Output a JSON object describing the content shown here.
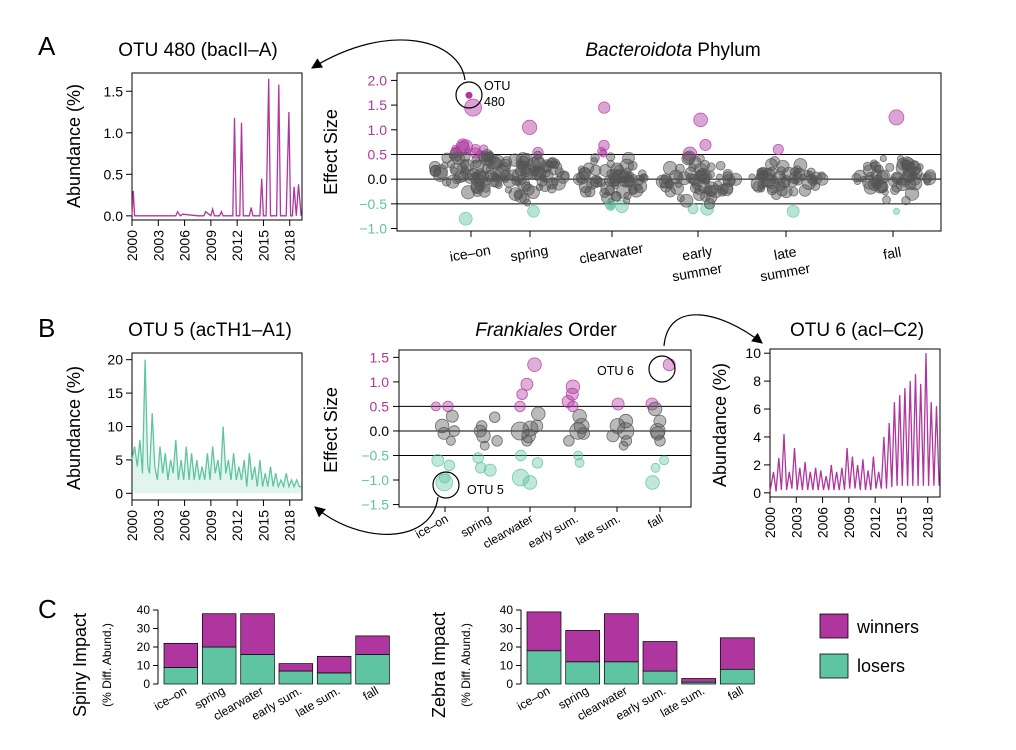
{
  "colors": {
    "winners": "#b0369f",
    "losers": "#5fc4a2",
    "neutral": "#555555"
  },
  "panel_letters": [
    "A",
    "B",
    "C"
  ],
  "chart_data": [
    {
      "id": "a_ts",
      "type": "line",
      "title": "OTU 480 (bacII–A)",
      "ylabel": "Abundance (%)",
      "xlabel": "",
      "xlim": [
        2000,
        2019.4
      ],
      "ylim": [
        -0.05,
        1.72
      ],
      "xticks": [
        "2000",
        "2003",
        "2006",
        "2009",
        "2012",
        "2015",
        "2018"
      ],
      "yticks": [
        "0.0",
        "0.5",
        "1.0",
        "1.5"
      ],
      "color": "winners",
      "fill": false,
      "x": [
        2000.0,
        2000.15,
        2000.3,
        2001.5,
        2003.5,
        2005.0,
        2005.2,
        2005.5,
        2005.8,
        2007.5,
        2008.2,
        2008.4,
        2009.0,
        2009.2,
        2009.4,
        2010.0,
        2010.2,
        2010.4,
        2011.0,
        2011.5,
        2011.7,
        2011.9,
        2012.3,
        2012.5,
        2012.7,
        2013.0,
        2013.4,
        2013.6,
        2013.8,
        2014.3,
        2014.6,
        2014.8,
        2015.0,
        2015.3,
        2015.6,
        2015.8,
        2016.0,
        2016.5,
        2016.75,
        2016.95,
        2017.2,
        2017.6,
        2017.9,
        2018.1,
        2018.3,
        2018.5,
        2018.75,
        2019.0,
        2019.3
      ],
      "y": [
        0.0,
        0.3,
        0.0,
        0.0,
        0.0,
        0.0,
        0.05,
        0.0,
        0.02,
        0.0,
        0.0,
        0.05,
        0.0,
        0.08,
        0.0,
        0.0,
        0.05,
        0.0,
        0.0,
        0.0,
        1.18,
        0.0,
        0.0,
        1.12,
        0.0,
        0.0,
        0.0,
        0.1,
        0.0,
        0.0,
        0.0,
        0.45,
        0.0,
        0.0,
        1.65,
        0.0,
        0.0,
        0.0,
        1.58,
        0.0,
        0.0,
        0.0,
        1.25,
        0.0,
        0.0,
        0.35,
        0.0,
        0.38,
        0.0
      ]
    },
    {
      "id": "a_beeswarm",
      "type": "scatter",
      "title_italic": "Bacteroidota",
      "title_rest": " Phylum",
      "ylabel": "Effect Size",
      "ylim": [
        -1.05,
        2.15
      ],
      "yticks": [
        "−1.0",
        "−0.5",
        "0.0",
        "0.5",
        "1.0",
        "1.5",
        "2.0"
      ],
      "categories": [
        "ice–on",
        "spring",
        "clearwater",
        "early summer",
        "late summer",
        "fall"
      ],
      "category_lines": [
        [
          "ice–on"
        ],
        [
          "spring"
        ],
        [
          "clearwater"
        ],
        [
          "early",
          "summer"
        ],
        [
          "late",
          "summer"
        ],
        [
          "fall"
        ]
      ],
      "hlines": [
        -0.5,
        0.0,
        0.5
      ],
      "groups": [
        {
          "n": 75,
          "sd": 0.25,
          "mean": 0.25,
          "min": -0.8,
          "max": 1.45,
          "outlier": 1.7
        },
        {
          "n": 70,
          "sd": 0.23,
          "mean": 0.05,
          "min": -0.65,
          "max": 1.05
        },
        {
          "n": 75,
          "sd": 0.25,
          "mean": 0.0,
          "min": -0.55,
          "max": 1.45
        },
        {
          "n": 65,
          "sd": 0.25,
          "mean": 0.0,
          "min": -0.6,
          "max": 1.2
        },
        {
          "n": 60,
          "sd": 0.16,
          "mean": 0.0,
          "min": -0.65,
          "max": 0.6
        },
        {
          "n": 65,
          "sd": 0.23,
          "mean": 0.05,
          "min": -0.65,
          "max": 1.25
        }
      ],
      "annotation": {
        "label_line1": "OTU",
        "label_line2": "480"
      }
    },
    {
      "id": "b_left_ts",
      "type": "area",
      "title": "OTU 5 (acTH1–A1)",
      "ylabel": "Abundance (%)",
      "xlabel": "",
      "xlim": [
        2000,
        2019.4
      ],
      "ylim": [
        -1,
        21
      ],
      "xticks": [
        "2000",
        "2003",
        "2006",
        "2009",
        "2012",
        "2015",
        "2018"
      ],
      "yticks": [
        "0",
        "5",
        "10",
        "15",
        "20"
      ],
      "color": "losers",
      "fill": true,
      "x": [
        2000.0,
        2000.3,
        2000.6,
        2000.9,
        2001.2,
        2001.5,
        2001.8,
        2002.0,
        2002.3,
        2002.6,
        2002.9,
        2003.2,
        2003.5,
        2003.8,
        2004.1,
        2004.4,
        2004.7,
        2005.0,
        2005.3,
        2005.6,
        2005.9,
        2006.2,
        2006.5,
        2006.8,
        2007.1,
        2007.4,
        2007.7,
        2008.0,
        2008.3,
        2008.6,
        2008.9,
        2009.2,
        2009.5,
        2009.8,
        2010.1,
        2010.4,
        2010.7,
        2011.0,
        2011.3,
        2011.6,
        2011.9,
        2012.2,
        2012.5,
        2012.8,
        2013.1,
        2013.4,
        2013.7,
        2014.0,
        2014.3,
        2014.6,
        2014.9,
        2015.2,
        2015.5,
        2015.8,
        2016.1,
        2016.4,
        2016.7,
        2017.0,
        2017.3,
        2017.6,
        2017.9,
        2018.2,
        2018.5,
        2018.8,
        2019.1,
        2019.3
      ],
      "y": [
        5,
        7,
        4,
        8,
        3,
        20,
        4,
        3,
        12,
        4,
        2,
        7,
        3,
        6,
        2,
        5,
        3,
        8,
        2,
        5,
        2,
        7,
        2,
        6,
        2,
        5,
        2,
        4,
        2,
        6,
        2,
        7,
        3,
        5,
        2,
        10,
        3,
        5,
        2,
        6,
        2,
        4,
        2,
        5,
        1,
        6,
        2,
        4,
        1,
        5,
        1,
        3,
        1,
        4,
        1,
        3,
        1,
        2,
        1,
        3,
        1,
        2,
        1,
        2,
        1,
        1
      ]
    },
    {
      "id": "b_beeswarm",
      "type": "scatter",
      "title_italic": "Frankiales",
      "title_rest": " Order",
      "ylabel": "Effect Size",
      "ylim": [
        -1.55,
        1.65
      ],
      "yticks": [
        "−1.5",
        "−1.0",
        "−0.5",
        "0.0",
        "0.5",
        "1.0",
        "1.5"
      ],
      "categories": [
        "ice–on",
        "spring",
        "clearwater",
        "early sum.",
        "late sum.",
        "fall"
      ],
      "hlines": [
        -0.5,
        0.0,
        0.5
      ],
      "points": [
        [
          0.5,
          "w",
          7
        ],
        [
          0.5,
          "w",
          6
        ],
        [
          0.3,
          "n",
          8
        ],
        [
          0.1,
          "n",
          9
        ],
        [
          -0.05,
          "n",
          8
        ],
        [
          0.0,
          "n",
          7
        ],
        [
          -0.2,
          "n",
          6
        ],
        [
          -0.6,
          "l",
          8
        ],
        [
          -0.7,
          "l",
          7
        ],
        [
          -1.05,
          "l",
          11
        ],
        [
          -0.95,
          "l",
          7
        ],
        [
          0.28,
          "n",
          7
        ],
        [
          0.1,
          "n",
          7
        ],
        [
          0.0,
          "n",
          8
        ],
        [
          -0.1,
          "n",
          9
        ],
        [
          -0.2,
          "n",
          7
        ],
        [
          -0.3,
          "n",
          6
        ],
        [
          -0.55,
          "l",
          7
        ],
        [
          -0.75,
          "l",
          7
        ],
        [
          -0.8,
          "l",
          8
        ],
        [
          1.35,
          "w",
          9
        ],
        [
          0.95,
          "w",
          8
        ],
        [
          0.75,
          "w",
          7
        ],
        [
          0.5,
          "w",
          7
        ],
        [
          0.35,
          "n",
          9
        ],
        [
          0.1,
          "n",
          8
        ],
        [
          0.05,
          "n",
          10
        ],
        [
          0.0,
          "n",
          12
        ],
        [
          -0.1,
          "n",
          9
        ],
        [
          -0.2,
          "n",
          7
        ],
        [
          -0.5,
          "l",
          7
        ],
        [
          -0.65,
          "l",
          7
        ],
        [
          -0.95,
          "l",
          11
        ],
        [
          -1.05,
          "l",
          9
        ],
        [
          0.9,
          "w",
          9
        ],
        [
          0.75,
          "w",
          8
        ],
        [
          0.6,
          "w",
          8
        ],
        [
          0.5,
          "w",
          7
        ],
        [
          0.3,
          "n",
          9
        ],
        [
          0.1,
          "n",
          10
        ],
        [
          0.0,
          "n",
          11
        ],
        [
          -0.05,
          "n",
          8
        ],
        [
          -0.2,
          "n",
          7
        ],
        [
          -0.5,
          "l",
          6
        ],
        [
          -0.65,
          "l",
          6
        ],
        [
          0.55,
          "w",
          8
        ],
        [
          0.2,
          "n",
          9
        ],
        [
          0.1,
          "n",
          10
        ],
        [
          0.0,
          "n",
          11
        ],
        [
          -0.1,
          "n",
          8
        ],
        [
          -0.2,
          "n",
          7
        ],
        [
          -0.3,
          "n",
          6
        ],
        [
          1.35,
          "w",
          8
        ],
        [
          0.55,
          "w",
          8
        ],
        [
          0.45,
          "n",
          9
        ],
        [
          0.2,
          "n",
          8
        ],
        [
          0.0,
          "n",
          10
        ],
        [
          -0.05,
          "n",
          9
        ],
        [
          -0.2,
          "n",
          7
        ],
        [
          -0.6,
          "l",
          6
        ],
        [
          -0.75,
          "l",
          6
        ],
        [
          -1.05,
          "l",
          9
        ]
      ],
      "point_category": [
        0,
        0,
        0,
        0,
        0,
        0,
        0,
        0,
        0,
        0,
        0,
        1,
        1,
        1,
        1,
        1,
        1,
        1,
        1,
        1,
        2,
        2,
        2,
        2,
        2,
        2,
        2,
        2,
        2,
        2,
        2,
        2,
        2,
        2,
        3,
        3,
        3,
        3,
        3,
        3,
        3,
        3,
        3,
        3,
        3,
        4,
        4,
        4,
        4,
        4,
        4,
        4,
        5,
        5,
        5,
        5,
        5,
        5,
        5,
        5,
        5,
        5
      ],
      "annotations": [
        {
          "label": "OTU 6"
        },
        {
          "label": "OTU 5"
        }
      ]
    },
    {
      "id": "b_right_ts",
      "type": "line",
      "title": "OTU 6 (acI–C2)",
      "ylabel": "Abundance (%)",
      "xlabel": "",
      "xlim": [
        2000,
        2019.4
      ],
      "ylim": [
        -0.3,
        10.3
      ],
      "xticks": [
        "2000",
        "2003",
        "2006",
        "2009",
        "2012",
        "2015",
        "2018"
      ],
      "yticks": [
        "0",
        "2",
        "4",
        "6",
        "8",
        "10"
      ],
      "color": "winners",
      "fill": false,
      "x": [
        2000.0,
        2000.4,
        2000.7,
        2001.0,
        2001.3,
        2001.6,
        2001.9,
        2002.2,
        2002.5,
        2002.8,
        2003.1,
        2003.4,
        2003.7,
        2004.0,
        2004.3,
        2004.6,
        2004.9,
        2005.2,
        2005.5,
        2005.8,
        2006.1,
        2006.4,
        2006.7,
        2007.0,
        2007.3,
        2007.6,
        2007.9,
        2008.2,
        2008.5,
        2008.8,
        2009.1,
        2009.4,
        2009.7,
        2010.0,
        2010.3,
        2010.6,
        2010.9,
        2011.2,
        2011.5,
        2011.8,
        2012.1,
        2012.4,
        2012.7,
        2013.0,
        2013.3,
        2013.6,
        2013.9,
        2014.2,
        2014.5,
        2014.8,
        2015.1,
        2015.4,
        2015.7,
        2016.0,
        2016.3,
        2016.6,
        2016.9,
        2017.2,
        2017.5,
        2017.8,
        2018.1,
        2018.4,
        2018.7,
        2019.0,
        2019.3
      ],
      "y": [
        0.1,
        1.5,
        0.1,
        2.5,
        0.2,
        4.2,
        0.2,
        1.5,
        0.3,
        3.2,
        0.2,
        1.8,
        0.2,
        2.2,
        0.2,
        1.5,
        0.2,
        1.8,
        0.2,
        1.6,
        0.2,
        1.2,
        0.2,
        2.0,
        0.2,
        1.5,
        0.2,
        1.8,
        0.2,
        3.2,
        0.3,
        2.6,
        0.3,
        2.0,
        0.2,
        2.4,
        0.2,
        1.6,
        0.2,
        2.6,
        0.3,
        1.5,
        0.3,
        4.0,
        0.3,
        5.0,
        0.4,
        6.5,
        0.5,
        7.0,
        0.5,
        7.5,
        0.5,
        8.0,
        0.5,
        8.5,
        0.5,
        7.8,
        0.5,
        10.0,
        0.5,
        6.5,
        0.5,
        6.2,
        0.5
      ]
    },
    {
      "id": "c_spiny",
      "type": "bar",
      "ylabel": "Spiny Impact",
      "ylabel_sub": "(% Diff. Abund.)",
      "ylim": [
        0,
        40
      ],
      "yticks": [
        "0",
        "10",
        "20",
        "30",
        "40"
      ],
      "categories": [
        "ice–on",
        "spring",
        "clearwater",
        "early sum.",
        "late sum.",
        "fall"
      ],
      "series": [
        {
          "name": "losers",
          "values": [
            9,
            20,
            16,
            7,
            6,
            16
          ]
        },
        {
          "name": "winners",
          "values": [
            13,
            18,
            22,
            4,
            9,
            10
          ]
        }
      ]
    },
    {
      "id": "c_zebra",
      "type": "bar",
      "ylabel": "Zebra Impact",
      "ylabel_sub": "(% Diff. Abund.)",
      "ylim": [
        0,
        40
      ],
      "yticks": [
        "0",
        "10",
        "20",
        "30",
        "40"
      ],
      "categories": [
        "ice–on",
        "spring",
        "clearwater",
        "early sum.",
        "late sum.",
        "fall"
      ],
      "series": [
        {
          "name": "losers",
          "values": [
            18,
            12,
            12,
            7,
            1,
            8
          ]
        },
        {
          "name": "winners",
          "values": [
            21,
            17,
            26,
            16,
            2,
            17
          ]
        }
      ]
    }
  ],
  "legend": [
    {
      "key": "winners",
      "label": "winners"
    },
    {
      "key": "losers",
      "label": "losers"
    }
  ]
}
